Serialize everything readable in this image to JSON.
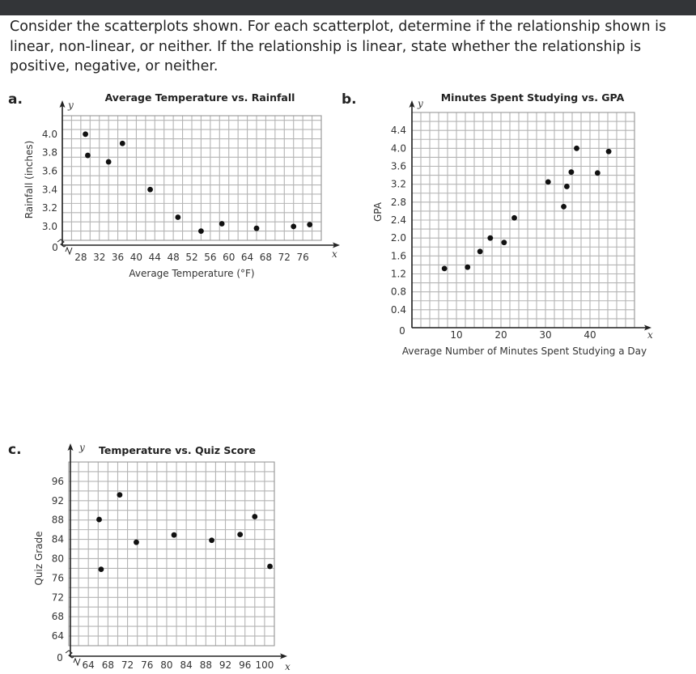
{
  "prompt": "Consider the scatterplots shown. For each scatterplot, determine if the relationship shown is linear, non-linear, or neither. If the relationship is linear, state whether the relationship is positive, negative, or neither.",
  "chart_data": [
    {
      "label": "a.",
      "type": "scatter",
      "title": "Average Temperature vs. Rainfall",
      "xlabel": "Average Temperature (°F)",
      "ylabel": "Rainfall (inches)",
      "x_var": "x",
      "y_var": "y",
      "origin_label": "0",
      "axis_break": true,
      "xlim": [
        24,
        80
      ],
      "ylim": [
        2.85,
        4.2
      ],
      "x_ticks": [
        28,
        32,
        36,
        40,
        44,
        48,
        52,
        56,
        60,
        64,
        68,
        72,
        76
      ],
      "y_ticks": [
        "3.0",
        "3.2",
        "3.4",
        "3.6",
        "3.8",
        "4.0"
      ],
      "grid": true,
      "points": [
        [
          29,
          4.0
        ],
        [
          29.5,
          3.77
        ],
        [
          34,
          3.7
        ],
        [
          37,
          3.9
        ],
        [
          43,
          3.4
        ],
        [
          49,
          3.1
        ],
        [
          54,
          2.95
        ],
        [
          58.5,
          3.03
        ],
        [
          66,
          2.98
        ],
        [
          74,
          3.0
        ],
        [
          77.5,
          3.02
        ]
      ]
    },
    {
      "label": "b.",
      "type": "scatter",
      "title": "Minutes Spent Studying vs. GPA",
      "xlabel": "Average Number of Minutes Spent Studying a Day",
      "ylabel": "GPA",
      "x_var": "x",
      "y_var": "y",
      "origin_label": "0",
      "axis_break": false,
      "xlim": [
        0,
        50
      ],
      "ylim": [
        0,
        4.8
      ],
      "x_ticks": [
        10,
        20,
        30,
        40
      ],
      "y_ticks": [
        "0.4",
        "0.8",
        "1.2",
        "1.6",
        "2.0",
        "2.4",
        "2.8",
        "3.2",
        "3.6",
        "4.0",
        "4.4"
      ],
      "grid": true,
      "points": [
        [
          7.3,
          1.32
        ],
        [
          12.5,
          1.35
        ],
        [
          15.3,
          1.7
        ],
        [
          17.6,
          2.0
        ],
        [
          20.7,
          1.9
        ],
        [
          23,
          2.45
        ],
        [
          30.6,
          3.25
        ],
        [
          34.1,
          2.7
        ],
        [
          34.8,
          3.15
        ],
        [
          35.8,
          3.47
        ],
        [
          37,
          4.0
        ],
        [
          41.7,
          3.45
        ],
        [
          44.2,
          3.93
        ]
      ]
    },
    {
      "label": "c.",
      "type": "scatter",
      "title": "Temperature vs. Quiz Score",
      "xlabel": "",
      "ylabel": "Quiz Grade",
      "x_var": "x",
      "y_var": "y",
      "origin_label": "0",
      "axis_break": true,
      "xlim": [
        60,
        102
      ],
      "ylim": [
        62,
        100
      ],
      "x_ticks": [
        64,
        68,
        72,
        76,
        80,
        84,
        88,
        92,
        96,
        100
      ],
      "y_ticks": [
        "64",
        "68",
        "72",
        "76",
        "80",
        "84",
        "88",
        "92",
        "96"
      ],
      "grid": true,
      "points": [
        [
          66.2,
          88.1
        ],
        [
          66.6,
          77.8
        ],
        [
          70.4,
          93.2
        ],
        [
          73.8,
          83.4
        ],
        [
          81.5,
          84.9
        ],
        [
          89.2,
          83.8
        ],
        [
          95,
          85
        ],
        [
          98,
          88.7
        ],
        [
          101.1,
          78.4
        ]
      ]
    }
  ]
}
